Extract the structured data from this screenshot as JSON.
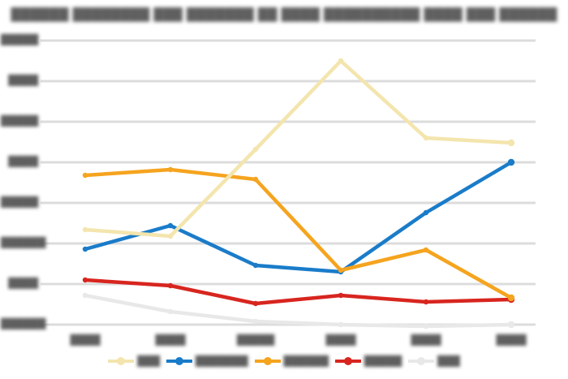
{
  "redaction_note": "every text element in the source screenshot is blurred into illegible gray blobs; block glyphs reproduce the redacted shapes",
  "title": {
    "text": "██████ ████████ ███ ███████ ██ ████ ██████████ ████ ███ ██████"
  },
  "y_axis": {
    "tick_labels": [
      "█████",
      "████",
      "█████",
      "████",
      "█████",
      "██████",
      "████",
      "██████"
    ]
  },
  "x_axis": {
    "tick_labels": [
      "████",
      "████",
      "█████",
      "████",
      "████",
      "████"
    ]
  },
  "legend": {
    "position": "bottom"
  },
  "colors": {
    "background": "#ffffff",
    "gridline": "#dcdcdc",
    "text_blob": "#575757",
    "cream": "#f3e5ad",
    "blue": "#1a7cc9",
    "orange": "#f5a41f",
    "red": "#d8251f",
    "gray": "#e8e8e8"
  },
  "chart_data": {
    "type": "line",
    "categories": [
      "████",
      "████",
      "█████",
      "████",
      "████",
      "████"
    ],
    "ylim": [
      0,
      70
    ],
    "y_gridline_step": 10,
    "grid": true,
    "legend_position": "bottom",
    "series": [
      {
        "id": "cream",
        "legend_label": "███",
        "color": "#f3e5ad",
        "values": [
          23.4,
          21.8,
          43.2,
          65.0,
          46.0,
          44.8
        ]
      },
      {
        "id": "blue",
        "legend_label": "███████",
        "color": "#1a7cc9",
        "values": [
          18.6,
          24.4,
          14.6,
          13.0,
          27.6,
          40.0
        ]
      },
      {
        "id": "orange",
        "legend_label": "██████",
        "color": "#f5a41f",
        "values": [
          36.8,
          38.2,
          35.8,
          13.4,
          18.4,
          6.6
        ]
      },
      {
        "id": "red",
        "legend_label": "█████",
        "color": "#d8251f",
        "values": [
          11.0,
          9.6,
          5.2,
          7.2,
          5.6,
          6.2
        ]
      },
      {
        "id": "gray",
        "legend_label": "███",
        "color": "#e8e8e8",
        "values": [
          7.2,
          3.2,
          0.8,
          0.0,
          -0.4,
          0.0
        ]
      }
    ],
    "draw_order": [
      "gray",
      "red",
      "blue",
      "orange",
      "cream"
    ]
  }
}
